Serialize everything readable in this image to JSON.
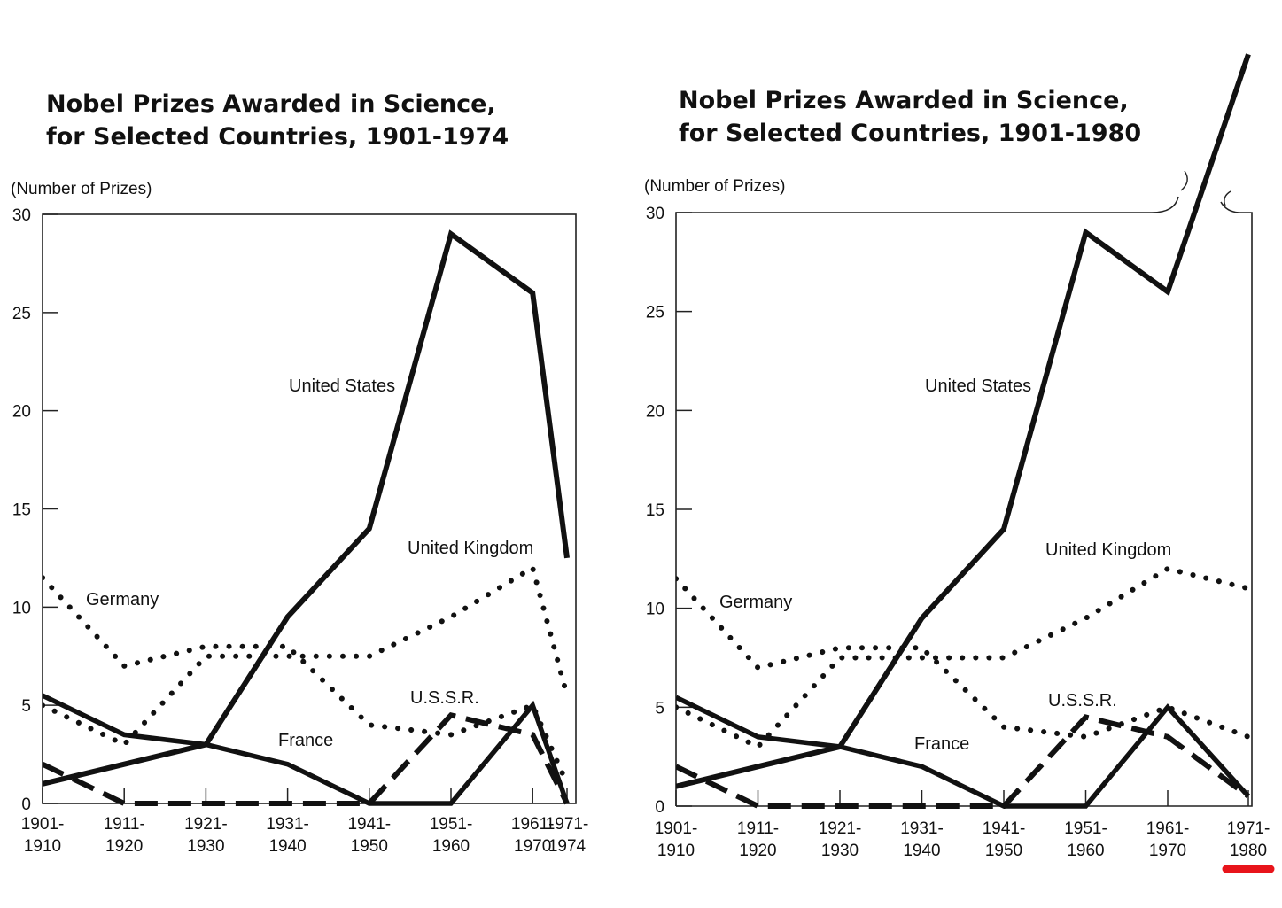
{
  "chart_data": [
    {
      "type": "line",
      "title_line1": "Nobel Prizes Awarded in Science,",
      "title_line2": "for Selected Countries, 1901-1974",
      "ylabel": "(Number of Prizes)",
      "ylim": [
        0,
        30
      ],
      "yticks": [
        0,
        5,
        10,
        15,
        20,
        25,
        30
      ],
      "categories": [
        [
          "1901-",
          "1910"
        ],
        [
          "1911-",
          "1920"
        ],
        [
          "1921-",
          "1930"
        ],
        [
          "1931-",
          "1940"
        ],
        [
          "1941-",
          "1950"
        ],
        [
          "1951-",
          "1960"
        ],
        [
          "1961-",
          "1970"
        ],
        [
          "1971-",
          "1974"
        ]
      ],
      "series": [
        {
          "name": "United States",
          "style": "solid-thick",
          "values": [
            1,
            2,
            3,
            9.5,
            14,
            29,
            26,
            12.5
          ]
        },
        {
          "name": "United Kingdom",
          "style": "dotted",
          "values": [
            5,
            3,
            7.5,
            7.5,
            7.5,
            9.5,
            12,
            5.5
          ]
        },
        {
          "name": "Germany",
          "style": "dotted",
          "values": [
            11.5,
            7,
            8,
            8,
            4,
            3.5,
            5,
            1
          ]
        },
        {
          "name": "France",
          "style": "solid",
          "values": [
            5.5,
            3.5,
            3,
            2,
            0,
            0,
            5,
            0
          ]
        },
        {
          "name": "U.S.S.R.",
          "style": "dashed",
          "values": [
            2,
            0,
            0,
            0,
            0,
            4.5,
            3.5,
            0
          ]
        }
      ],
      "ylim_overflow": false
    },
    {
      "type": "line",
      "title_line1": "Nobel Prizes Awarded in Science,",
      "title_line2": "for Selected Countries, 1901-1980",
      "ylabel": "(Number of Prizes)",
      "ylim": [
        0,
        30
      ],
      "yticks": [
        0,
        5,
        10,
        15,
        20,
        25,
        30
      ],
      "categories": [
        [
          "1901-",
          "1910"
        ],
        [
          "1911-",
          "1920"
        ],
        [
          "1921-",
          "1930"
        ],
        [
          "1931-",
          "1940"
        ],
        [
          "1941-",
          "1950"
        ],
        [
          "1951-",
          "1960"
        ],
        [
          "1961-",
          "1970"
        ],
        [
          "1971-",
          "1980"
        ]
      ],
      "series": [
        {
          "name": "United States",
          "style": "solid-thick",
          "values": [
            1,
            2,
            3,
            9.5,
            14,
            29,
            26,
            38
          ]
        },
        {
          "name": "United Kingdom",
          "style": "dotted",
          "values": [
            5,
            3,
            7.5,
            7.5,
            7.5,
            9.5,
            12,
            11
          ]
        },
        {
          "name": "Germany",
          "style": "dotted",
          "values": [
            11.5,
            7,
            8,
            8,
            4,
            3.5,
            5,
            3.5
          ]
        },
        {
          "name": "France",
          "style": "solid",
          "values": [
            5.5,
            3.5,
            3,
            2,
            0,
            0,
            5,
            0.5
          ]
        },
        {
          "name": "U.S.S.R.",
          "style": "dashed",
          "values": [
            2,
            0,
            0,
            0,
            0,
            4.5,
            3.5,
            0.5
          ]
        }
      ],
      "ylim_overflow": true,
      "highlight_last_category_color": "#e8141b"
    }
  ]
}
